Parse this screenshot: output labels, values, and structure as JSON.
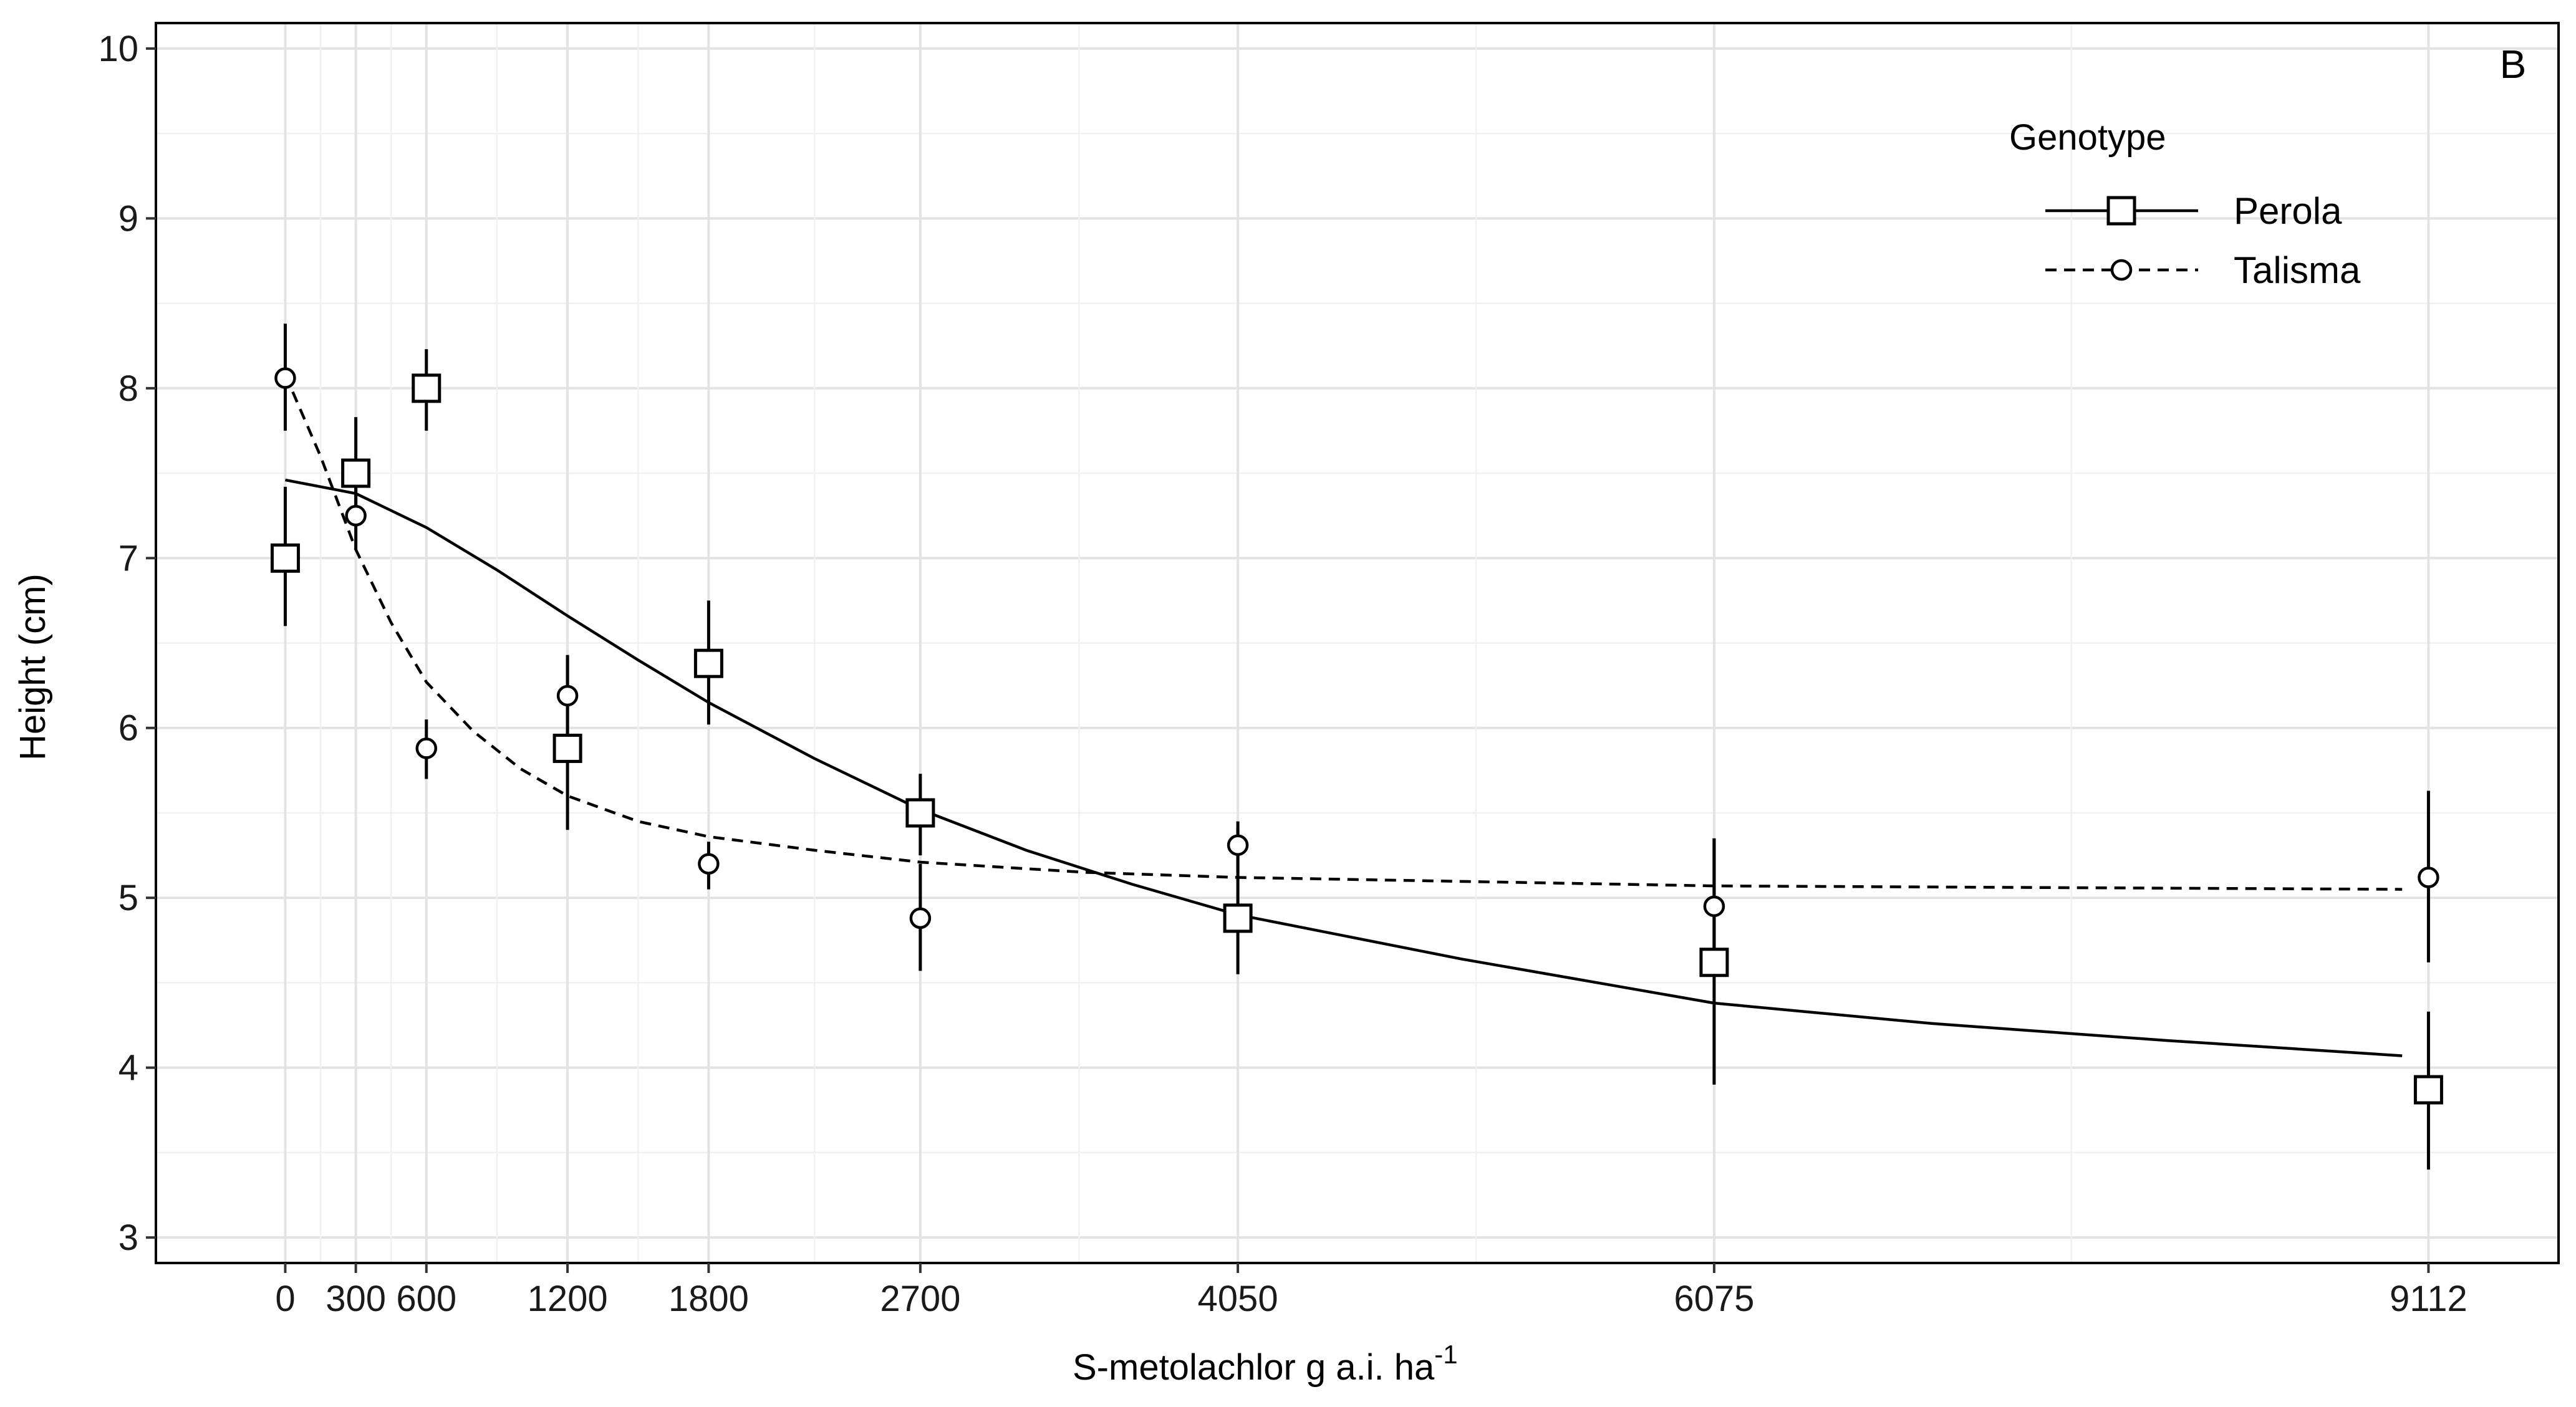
{
  "chart_data": {
    "type": "line",
    "panel_label": "B",
    "xlabel": "S-metolachlor g a.i. ha",
    "xlabel_superscript": "-1",
    "ylabel": "Height (cm)",
    "xlim": [
      -550,
      9665
    ],
    "ylim": [
      2.85,
      10.15
    ],
    "x_ticks": [
      0,
      300,
      600,
      1200,
      1800,
      2700,
      4050,
      6075,
      9112
    ],
    "x_tick_labels": [
      "0",
      "300",
      "600",
      "1200",
      "1800",
      "2700",
      "4050",
      "6075",
      "9112"
    ],
    "y_ticks": [
      3,
      4,
      5,
      6,
      7,
      8,
      9,
      10
    ],
    "y_tick_labels": [
      "3",
      "4",
      "5",
      "6",
      "7",
      "8",
      "9",
      "10"
    ],
    "grid": true,
    "legend": {
      "title": "Genotype",
      "position": "top-right"
    },
    "series": [
      {
        "name": "Perola",
        "marker": "square",
        "line_style": "solid",
        "points": [
          {
            "x": 0,
            "y": 7.0,
            "lo": 6.6,
            "hi": 7.42
          },
          {
            "x": 300,
            "y": 7.5,
            "lo": 7.2,
            "hi": 7.83
          },
          {
            "x": 600,
            "y": 8.0,
            "lo": 7.75,
            "hi": 8.23
          },
          {
            "x": 1200,
            "y": 5.88,
            "lo": 5.4,
            "hi": 6.42
          },
          {
            "x": 1800,
            "y": 6.38,
            "lo": 6.02,
            "hi": 6.75
          },
          {
            "x": 2700,
            "y": 5.5,
            "lo": 5.25,
            "hi": 5.73
          },
          {
            "x": 4050,
            "y": 4.88,
            "lo": 4.55,
            "hi": 5.4
          },
          {
            "x": 6075,
            "y": 4.62,
            "lo": 3.9,
            "hi": 5.35
          },
          {
            "x": 9112,
            "y": 3.87,
            "lo": 3.4,
            "hi": 4.33
          }
        ],
        "fit": [
          {
            "x": 0,
            "y": 7.46
          },
          {
            "x": 300,
            "y": 7.38
          },
          {
            "x": 600,
            "y": 7.18
          },
          {
            "x": 900,
            "y": 6.93
          },
          {
            "x": 1200,
            "y": 6.66
          },
          {
            "x": 1500,
            "y": 6.4
          },
          {
            "x": 1800,
            "y": 6.15
          },
          {
            "x": 2250,
            "y": 5.82
          },
          {
            "x": 2700,
            "y": 5.52
          },
          {
            "x": 3150,
            "y": 5.28
          },
          {
            "x": 3600,
            "y": 5.08
          },
          {
            "x": 4050,
            "y": 4.9
          },
          {
            "x": 5000,
            "y": 4.64
          },
          {
            "x": 6075,
            "y": 4.38
          },
          {
            "x": 7000,
            "y": 4.26
          },
          {
            "x": 8000,
            "y": 4.16
          },
          {
            "x": 9000,
            "y": 4.07
          }
        ]
      },
      {
        "name": "Talisma",
        "marker": "circle",
        "line_style": "dashed",
        "points": [
          {
            "x": 0,
            "y": 8.06,
            "lo": 7.75,
            "hi": 8.38
          },
          {
            "x": 300,
            "y": 7.25,
            "lo": 7.05,
            "hi": 7.5
          },
          {
            "x": 600,
            "y": 5.88,
            "lo": 5.7,
            "hi": 6.05
          },
          {
            "x": 1200,
            "y": 6.19,
            "lo": 5.95,
            "hi": 6.43
          },
          {
            "x": 1800,
            "y": 5.2,
            "lo": 5.05,
            "hi": 5.33
          },
          {
            "x": 2700,
            "y": 4.88,
            "lo": 4.57,
            "hi": 5.2
          },
          {
            "x": 4050,
            "y": 5.31,
            "lo": 5.15,
            "hi": 5.45
          },
          {
            "x": 6075,
            "y": 4.95,
            "lo": 4.55,
            "hi": 5.35
          },
          {
            "x": 9112,
            "y": 5.12,
            "lo": 4.62,
            "hi": 5.63
          }
        ],
        "fit": [
          {
            "x": 0,
            "y": 8.08
          },
          {
            "x": 150,
            "y": 7.6
          },
          {
            "x": 300,
            "y": 7.05
          },
          {
            "x": 450,
            "y": 6.62
          },
          {
            "x": 600,
            "y": 6.27
          },
          {
            "x": 800,
            "y": 5.98
          },
          {
            "x": 1000,
            "y": 5.76
          },
          {
            "x": 1200,
            "y": 5.6
          },
          {
            "x": 1500,
            "y": 5.45
          },
          {
            "x": 1800,
            "y": 5.36
          },
          {
            "x": 2250,
            "y": 5.28
          },
          {
            "x": 2700,
            "y": 5.21
          },
          {
            "x": 3400,
            "y": 5.15
          },
          {
            "x": 4050,
            "y": 5.12
          },
          {
            "x": 6075,
            "y": 5.07
          },
          {
            "x": 9000,
            "y": 5.05
          }
        ]
      }
    ]
  }
}
